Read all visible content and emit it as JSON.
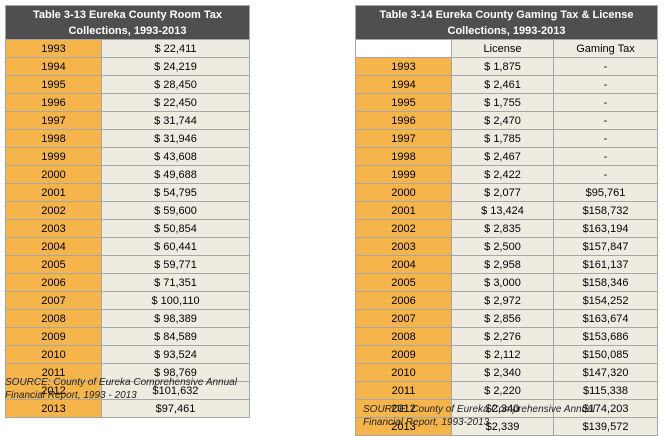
{
  "left": {
    "title": "Table 3-13 Eureka County Room Tax Collections, 1993-2013",
    "rows": [
      {
        "year": "1993",
        "value": "$ 22,411"
      },
      {
        "year": "1994",
        "value": "$ 24,219"
      },
      {
        "year": "1995",
        "value": "$ 28,450"
      },
      {
        "year": "1996",
        "value": "$ 22,450"
      },
      {
        "year": "1997",
        "value": "$ 31,744"
      },
      {
        "year": "1998",
        "value": "$ 31,946"
      },
      {
        "year": "1999",
        "value": "$ 43,608"
      },
      {
        "year": "2000",
        "value": "$ 49,688"
      },
      {
        "year": "2001",
        "value": "$ 54,795"
      },
      {
        "year": "2002",
        "value": "$ 59,600"
      },
      {
        "year": "2003",
        "value": "$ 50,854"
      },
      {
        "year": "2004",
        "value": "$ 60,441"
      },
      {
        "year": "2005",
        "value": "$ 59,771"
      },
      {
        "year": "2006",
        "value": "$ 71,351"
      },
      {
        "year": "2007",
        "value": "$ 100,110"
      },
      {
        "year": "2008",
        "value": "$ 98,389"
      },
      {
        "year": "2009",
        "value": "$ 84,589"
      },
      {
        "year": "2010",
        "value": "$ 93,524"
      },
      {
        "year": "2011",
        "value": "$ 98,769"
      },
      {
        "year": "2012",
        "value": "$101,632"
      },
      {
        "year": "2013",
        "value": "$97,461"
      }
    ],
    "source_line1": "SOURCE: County of Eureka Comprehensive Annual",
    "source_line2": "Financial Report, 1993 - 2013"
  },
  "right": {
    "title": "Table 3-14 Eureka County Gaming Tax & License Collections, 1993-2013",
    "headers": {
      "license": "License",
      "gaming": "Gaming Tax"
    },
    "rows": [
      {
        "year": "1993",
        "license": "$ 1,875",
        "gaming": "-"
      },
      {
        "year": "1994",
        "license": "$ 2,461",
        "gaming": "-"
      },
      {
        "year": "1995",
        "license": "$ 1,755",
        "gaming": "-"
      },
      {
        "year": "1996",
        "license": "$ 2,470",
        "gaming": "-"
      },
      {
        "year": "1997",
        "license": "$ 1,785",
        "gaming": "-"
      },
      {
        "year": "1998",
        "license": "$ 2,467",
        "gaming": "-"
      },
      {
        "year": "1999",
        "license": "$ 2,422",
        "gaming": "-"
      },
      {
        "year": "2000",
        "license": "$ 2,077",
        "gaming": "$95,761"
      },
      {
        "year": "2001",
        "license": "$ 13,424",
        "gaming": "$158,732"
      },
      {
        "year": "2002",
        "license": "$ 2,835",
        "gaming": "$163,194"
      },
      {
        "year": "2003",
        "license": "$ 2,500",
        "gaming": "$157,847"
      },
      {
        "year": "2004",
        "license": "$ 2,958",
        "gaming": "$161,137"
      },
      {
        "year": "2005",
        "license": "$ 3,000",
        "gaming": "$158,346"
      },
      {
        "year": "2006",
        "license": "$ 2,972",
        "gaming": "$154,252"
      },
      {
        "year": "2007",
        "license": "$ 2,856",
        "gaming": "$163,674"
      },
      {
        "year": "2008",
        "license": "$ 2,276",
        "gaming": "$153,686"
      },
      {
        "year": "2009",
        "license": "$ 2,112",
        "gaming": "$150,085"
      },
      {
        "year": "2010",
        "license": "$ 2,340",
        "gaming": "$147,320"
      },
      {
        "year": "2011",
        "license": "$ 2,220",
        "gaming": "$115,338"
      },
      {
        "year": "2012",
        "license": "$2,340",
        "gaming": "$174,203"
      },
      {
        "year": "2013",
        "license": "$2,339",
        "gaming": "$139,572"
      }
    ],
    "source_line1": "SOURCE: County of Eureka Comprehensive Annual",
    "source_line2": "Financial Report, 1993-2013"
  },
  "colors": {
    "title_bg": "#4f4f4f",
    "year_bg": "#f6b54b",
    "value_bg": "#eeece1",
    "border": "#a6a6a6"
  }
}
